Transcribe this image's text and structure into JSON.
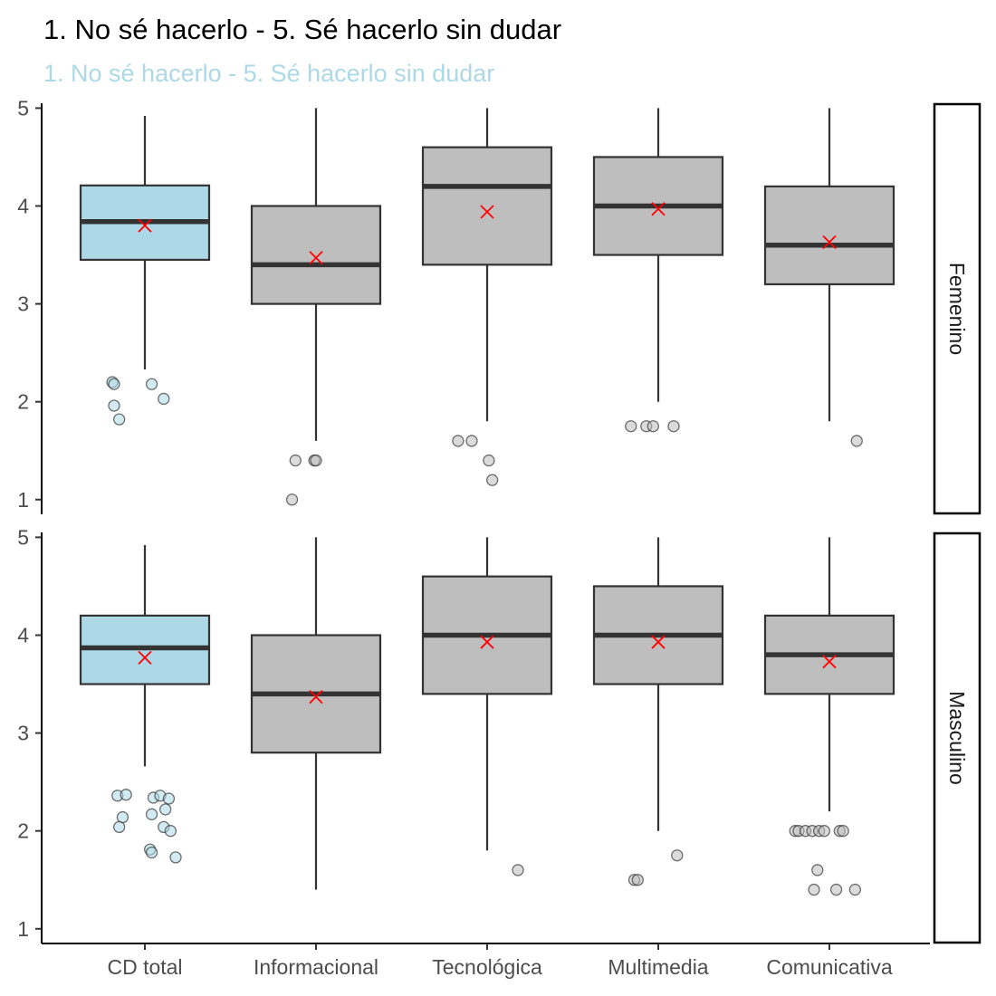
{
  "chart_data": {
    "type": "boxplot",
    "title": "1. No sé hacerlo - 5. Sé hacerlo sin dudar",
    "subtitle": "1. No sé hacerlo - 5. Sé hacerlo sin dudar",
    "categories": [
      "CD total",
      "Informacional",
      "Tecnológica",
      "Multimedia",
      "Comunicativa"
    ],
    "y_ticks": [
      1,
      2,
      3,
      4,
      5
    ],
    "ylim": [
      0.85,
      5.05
    ],
    "grid": false,
    "colors": {
      "highlight_fill": "#add8e6",
      "default_fill": "#bebebe",
      "box_stroke": "#333333",
      "mean_marker": "#ff0000"
    },
    "highlight_category": "CD total",
    "facets": [
      {
        "label": "Femenino",
        "boxes": [
          {
            "category": "CD total",
            "min": 2.33,
            "q1": 3.45,
            "median": 3.84,
            "q3": 4.21,
            "max": 4.92,
            "mean": 3.8,
            "outliers": [
              [
                -0.19,
                2.2
              ],
              [
                -0.18,
                2.18
              ],
              [
                -0.18,
                1.96
              ],
              [
                -0.15,
                1.82
              ],
              [
                0.04,
                2.18
              ],
              [
                0.11,
                2.03
              ]
            ]
          },
          {
            "category": "Informacional",
            "min": 1.6,
            "q1": 3.0,
            "median": 3.4,
            "q3": 4.0,
            "max": 5.0,
            "mean": 3.47,
            "outliers": [
              [
                -0.12,
                1.4
              ],
              [
                -0.01,
                1.4
              ],
              [
                0.0,
                1.4
              ],
              [
                -0.14,
                1.0
              ]
            ]
          },
          {
            "category": "Tecnológica",
            "min": 1.8,
            "q1": 3.4,
            "median": 4.2,
            "q3": 4.6,
            "max": 5.0,
            "mean": 3.94,
            "outliers": [
              [
                -0.17,
                1.6
              ],
              [
                -0.09,
                1.6
              ],
              [
                0.01,
                1.4
              ],
              [
                0.03,
                1.2
              ]
            ]
          },
          {
            "category": "Multimedia",
            "min": 2.0,
            "q1": 3.5,
            "median": 4.0,
            "q3": 4.5,
            "max": 5.0,
            "mean": 3.97,
            "outliers": [
              [
                -0.16,
                1.75
              ],
              [
                -0.07,
                1.75
              ],
              [
                -0.03,
                1.75
              ],
              [
                0.09,
                1.75
              ]
            ]
          },
          {
            "category": "Comunicativa",
            "min": 1.8,
            "q1": 3.2,
            "median": 3.6,
            "q3": 4.2,
            "max": 5.0,
            "mean": 3.63,
            "outliers": [
              [
                0.16,
                1.6
              ]
            ]
          }
        ]
      },
      {
        "label": "Masculino",
        "boxes": [
          {
            "category": "CD total",
            "min": 2.66,
            "q1": 3.5,
            "median": 3.87,
            "q3": 4.2,
            "max": 4.92,
            "mean": 3.77,
            "outliers": [
              [
                -0.16,
                2.36
              ],
              [
                -0.11,
                2.37
              ],
              [
                -0.13,
                2.14
              ],
              [
                -0.15,
                2.04
              ],
              [
                0.05,
                2.34
              ],
              [
                0.09,
                2.36
              ],
              [
                0.14,
                2.33
              ],
              [
                0.04,
                2.17
              ],
              [
                0.12,
                2.22
              ],
              [
                0.11,
                2.04
              ],
              [
                0.15,
                2.0
              ],
              [
                0.03,
                1.81
              ],
              [
                0.04,
                1.78
              ],
              [
                0.18,
                1.73
              ]
            ]
          },
          {
            "category": "Informacional",
            "min": 1.4,
            "q1": 2.8,
            "median": 3.4,
            "q3": 4.0,
            "max": 5.0,
            "mean": 3.37,
            "outliers": []
          },
          {
            "category": "Tecnológica",
            "min": 1.8,
            "q1": 3.4,
            "median": 4.0,
            "q3": 4.6,
            "max": 5.0,
            "mean": 3.93,
            "outliers": [
              [
                0.18,
                1.6
              ]
            ]
          },
          {
            "category": "Multimedia",
            "min": 2.0,
            "q1": 3.5,
            "median": 4.0,
            "q3": 4.5,
            "max": 5.0,
            "mean": 3.93,
            "outliers": [
              [
                -0.14,
                1.5
              ],
              [
                -0.12,
                1.5
              ],
              [
                0.11,
                1.75
              ]
            ]
          },
          {
            "category": "Comunicativa",
            "min": 2.2,
            "q1": 3.4,
            "median": 3.8,
            "q3": 4.2,
            "max": 5.0,
            "mean": 3.73,
            "outliers": [
              [
                -0.2,
                2.0
              ],
              [
                -0.18,
                2.0
              ],
              [
                -0.14,
                2.0
              ],
              [
                -0.1,
                2.0
              ],
              [
                -0.06,
                2.0
              ],
              [
                -0.03,
                2.0
              ],
              [
                0.06,
                2.0
              ],
              [
                0.08,
                2.0
              ],
              [
                -0.07,
                1.6
              ],
              [
                -0.09,
                1.4
              ],
              [
                0.04,
                1.4
              ],
              [
                0.15,
                1.4
              ]
            ]
          }
        ]
      }
    ]
  }
}
